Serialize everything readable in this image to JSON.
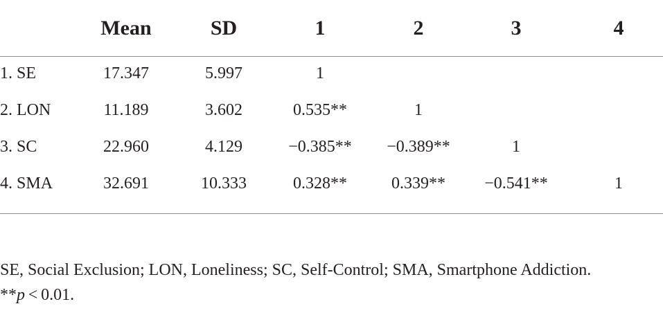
{
  "table": {
    "columns": [
      "Mean",
      "SD",
      "1",
      "2",
      "3",
      "4"
    ],
    "rows": [
      {
        "label": "1. SE",
        "mean": "17.347",
        "sd": "5.997",
        "c1": "1",
        "c2": "",
        "c3": "",
        "c4": ""
      },
      {
        "label": "2. LON",
        "mean": "11.189",
        "sd": "3.602",
        "c1": "0.535**",
        "c2": "1",
        "c3": "",
        "c4": ""
      },
      {
        "label": "3. SC",
        "mean": "22.960",
        "sd": "4.129",
        "c1": "−0.385**",
        "c2": "−0.389**",
        "c3": "1",
        "c4": ""
      },
      {
        "label": "4. SMA",
        "mean": "32.691",
        "sd": "10.333",
        "c1": "0.328**",
        "c2": "0.339**",
        "c3": "−0.541**",
        "c4": "1"
      }
    ]
  },
  "notes": {
    "abbreviations": "SE, Social Exclusion; LON, Loneliness; SC, Self-Control; SMA, Smartphone Addiction.",
    "sig_stars": "**",
    "sig_p": "p",
    "sig_rest": " < 0.01."
  }
}
